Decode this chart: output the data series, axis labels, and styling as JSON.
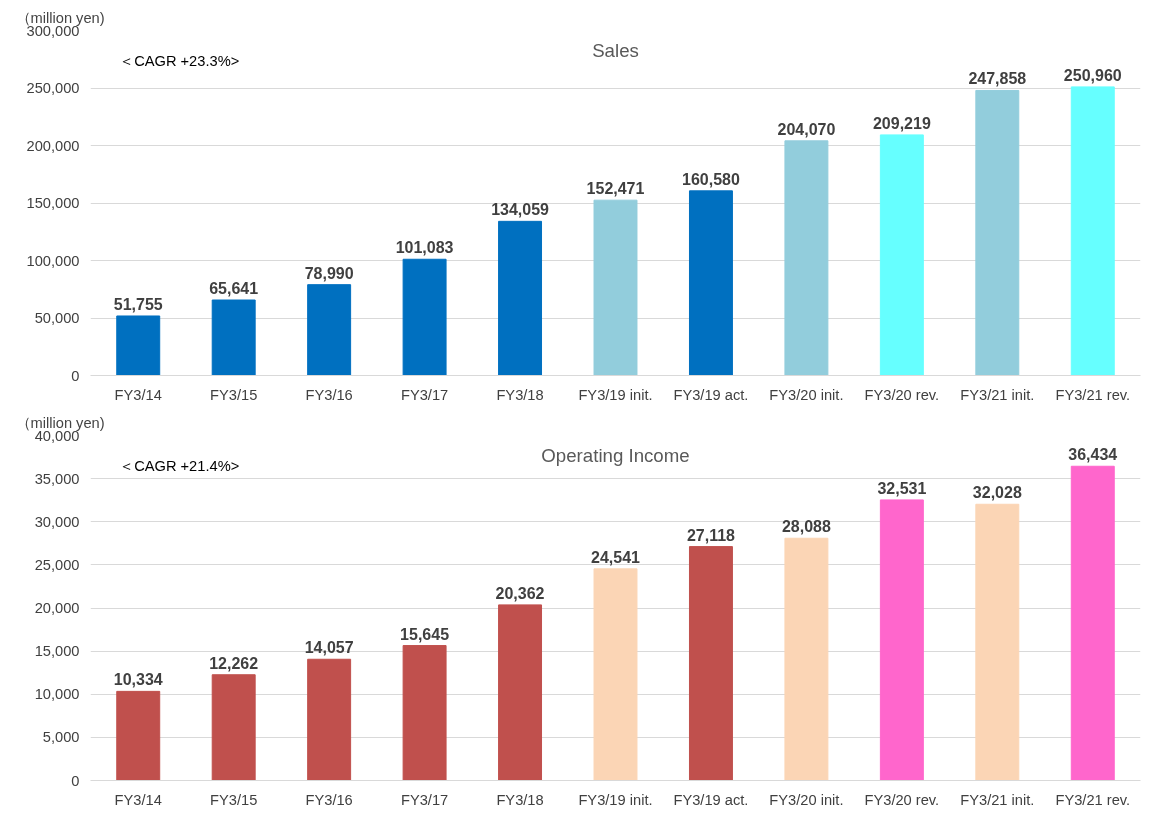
{
  "chart_data": [
    {
      "type": "bar",
      "title": "Sales",
      "ylabel": "（million yen)",
      "annotations": [
        "＜CAGR  +23.3%>"
      ],
      "categories": [
        "FY3/14",
        "FY3/15",
        "FY3/16",
        "FY3/17",
        "FY3/18",
        "FY3/19 init.",
        "FY3/19 act.",
        "FY3/20 init.",
        "FY3/20 rev.",
        "FY3/21 init.",
        "FY3/21 rev."
      ],
      "values": [
        51755,
        65641,
        78990,
        101083,
        134059,
        152471,
        160580,
        204070,
        209219,
        247858,
        250960
      ],
      "colors": [
        "#0070c0",
        "#0070c0",
        "#0070c0",
        "#0070c0",
        "#0070c0",
        "#92cddc",
        "#0070c0",
        "#92cddc",
        "#66ffff",
        "#92cddc",
        "#66ffff"
      ],
      "ylim": [
        0,
        300000
      ],
      "yticks": [
        {
          "value": 0,
          "label": "0"
        },
        {
          "value": 50000,
          "label": "50,000"
        },
        {
          "value": 100000,
          "label": "100,000"
        },
        {
          "value": 150000,
          "label": "150,000"
        },
        {
          "value": 200000,
          "label": "200,000"
        },
        {
          "value": 250000,
          "label": "250,000"
        },
        {
          "value": 300000,
          "label": "300,000"
        }
      ],
      "value_labels": [
        "51,755",
        "65,641",
        "78,990",
        "101,083",
        "134,059",
        "152,471",
        "160,580",
        "204,070",
        "209,219",
        "247,858",
        "250,960"
      ],
      "grid": "y"
    },
    {
      "type": "bar",
      "title": "Operating Income",
      "ylabel": "（million yen)",
      "annotations": [
        "＜CAGR +21.4%>"
      ],
      "categories": [
        "FY3/14",
        "FY3/15",
        "FY3/16",
        "FY3/17",
        "FY3/18",
        "FY3/19 init.",
        "FY3/19 act.",
        "FY3/20 init.",
        "FY3/20 rev.",
        "FY3/21 init.",
        "FY3/21 rev."
      ],
      "values": [
        10334,
        12262,
        14057,
        15645,
        20362,
        24541,
        27118,
        28088,
        32531,
        32028,
        36434
      ],
      "colors": [
        "#c0504d",
        "#c0504d",
        "#c0504d",
        "#c0504d",
        "#c0504d",
        "#fbd5b5",
        "#c0504d",
        "#fbd5b5",
        "#ff66cc",
        "#fbd5b5",
        "#ff66cc"
      ],
      "ylim": [
        0,
        40000
      ],
      "yticks": [
        {
          "value": 0,
          "label": "0"
        },
        {
          "value": 5000,
          "label": "5,000"
        },
        {
          "value": 10000,
          "label": "10,000"
        },
        {
          "value": 15000,
          "label": "15,000"
        },
        {
          "value": 20000,
          "label": "20,000"
        },
        {
          "value": 25000,
          "label": "25,000"
        },
        {
          "value": 30000,
          "label": "30,000"
        },
        {
          "value": 35000,
          "label": "35,000"
        },
        {
          "value": 40000,
          "label": "40,000"
        }
      ],
      "value_labels": [
        "10,334",
        "12,262",
        "14,057",
        "15,645",
        "20,362",
        "24,541",
        "27,118",
        "28,088",
        "32,531",
        "32,028",
        "36,434"
      ],
      "grid": "y"
    }
  ]
}
